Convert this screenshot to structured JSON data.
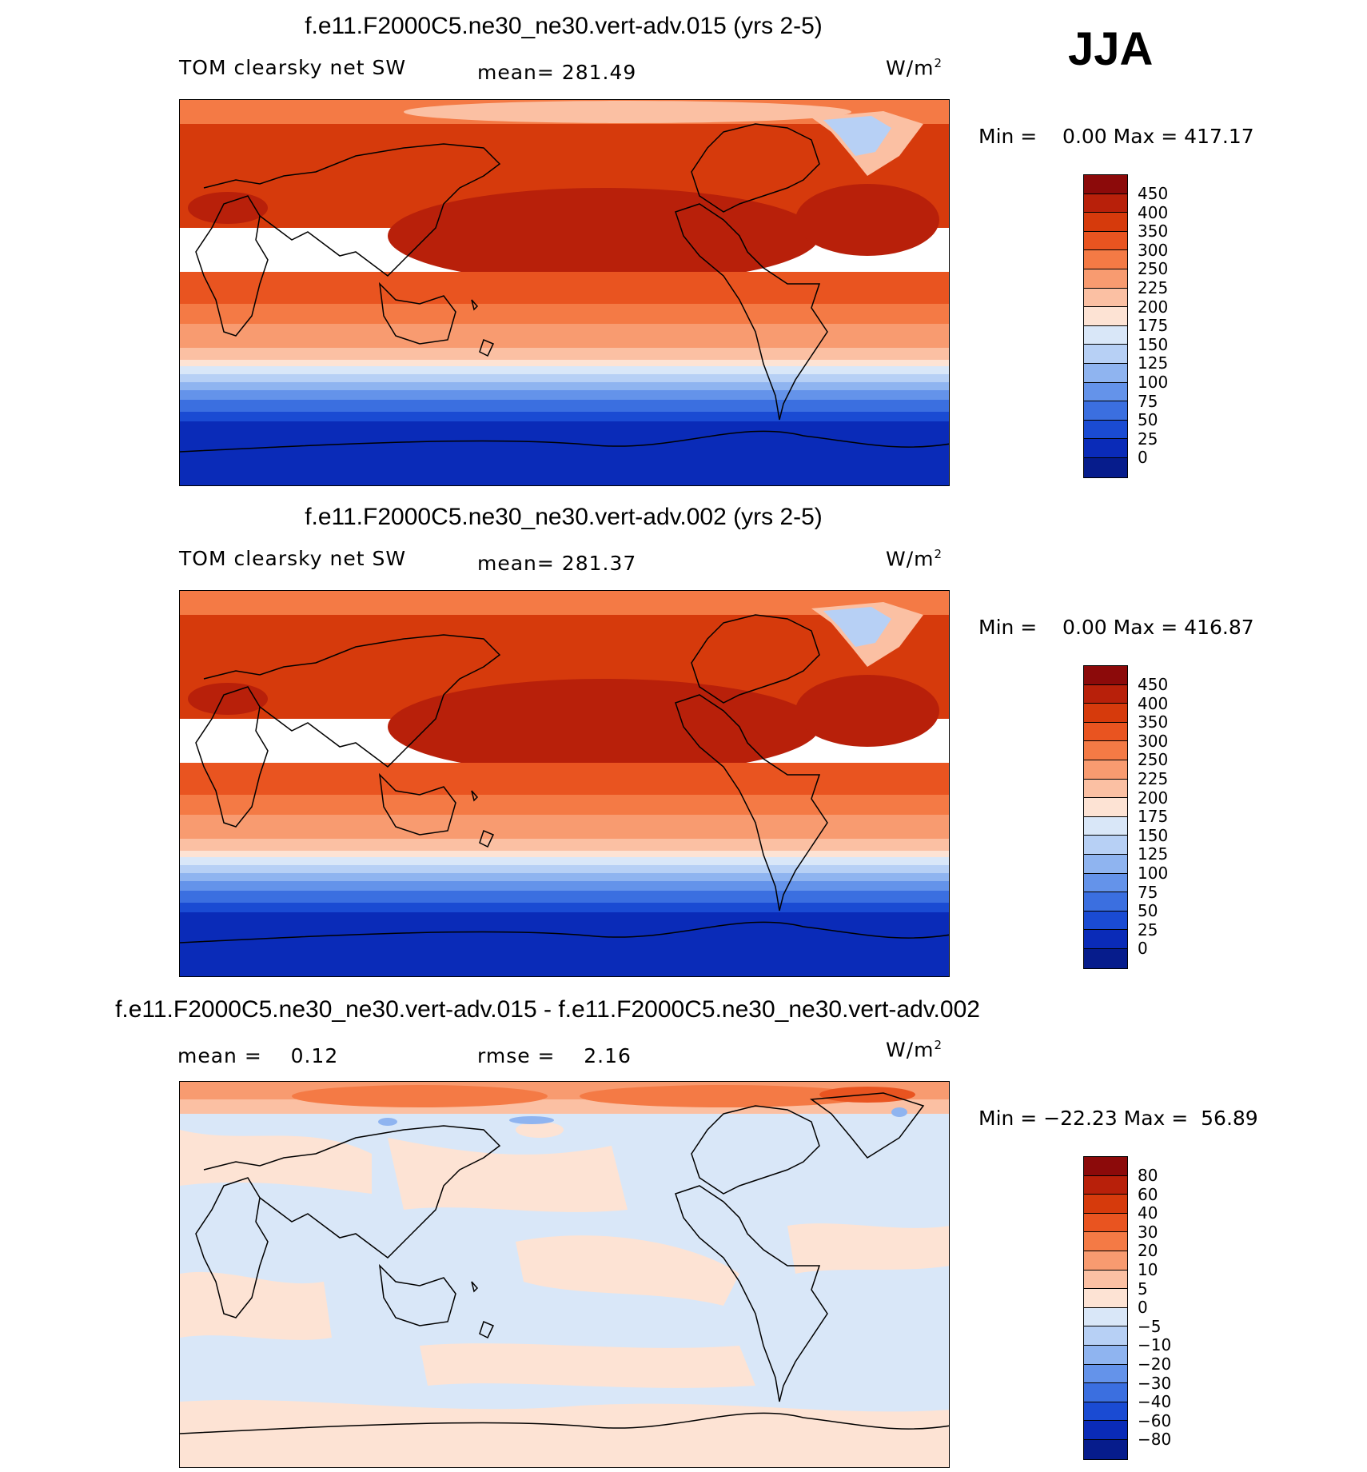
{
  "season": "JJA",
  "panels": [
    {
      "title": "f.e11.F2000C5.ne30_ne30.vert-adv.015 (yrs 2-5)",
      "left": "TOM clearsky net SW",
      "mid": "mean= 281.49",
      "unit": "W/m",
      "unit_sup": "2",
      "minmax": "Min =    0.00 Max = 417.17",
      "levels": [
        "450",
        "400",
        "350",
        "300",
        "250",
        "225",
        "200",
        "175",
        "150",
        "125",
        "100",
        "75",
        "50",
        "25",
        "0"
      ],
      "colors": [
        "#8c0a0a",
        "#b8200a",
        "#d63a0c",
        "#e95420",
        "#f47a45",
        "#f89b70",
        "#fbc0a3",
        "#fde3d4",
        "#d9e7f8",
        "#b7d0f5",
        "#8fb4f0",
        "#6493ea",
        "#3b6fe0",
        "#1a4bd3",
        "#0a2bb8",
        "#061c8c"
      ]
    },
    {
      "title": "f.e11.F2000C5.ne30_ne30.vert-adv.002 (yrs 2-5)",
      "left": "TOM clearsky net SW",
      "mid": "mean= 281.37",
      "unit": "W/m",
      "unit_sup": "2",
      "minmax": "Min =    0.00 Max = 416.87",
      "levels": [
        "450",
        "400",
        "350",
        "300",
        "250",
        "225",
        "200",
        "175",
        "150",
        "125",
        "100",
        "75",
        "50",
        "25",
        "0"
      ],
      "colors": [
        "#8c0a0a",
        "#b8200a",
        "#d63a0c",
        "#e95420",
        "#f47a45",
        "#f89b70",
        "#fbc0a3",
        "#fde3d4",
        "#d9e7f8",
        "#b7d0f5",
        "#8fb4f0",
        "#6493ea",
        "#3b6fe0",
        "#1a4bd3",
        "#0a2bb8",
        "#061c8c"
      ]
    },
    {
      "title": "f.e11.F2000C5.ne30_ne30.vert-adv.015 - f.e11.F2000C5.ne30_ne30.vert-adv.002",
      "left": "mean =    0.12",
      "mid": "rmse =    2.16",
      "unit": "W/m",
      "unit_sup": "2",
      "minmax": "Min = −22.23 Max =  56.89",
      "levels": [
        "80",
        "60",
        "40",
        "30",
        "20",
        "10",
        "5",
        "0",
        "−5",
        "−10",
        "−20",
        "−30",
        "−40",
        "−60",
        "−80"
      ],
      "colors": [
        "#8c0a0a",
        "#b8200a",
        "#d63a0c",
        "#e95420",
        "#f47a45",
        "#f89b70",
        "#fbc0a3",
        "#fde3d4",
        "#d9e7f8",
        "#b7d0f5",
        "#8fb4f0",
        "#6493ea",
        "#3b6fe0",
        "#1a4bd3",
        "#0a2bb8",
        "#061c8c"
      ]
    }
  ]
}
